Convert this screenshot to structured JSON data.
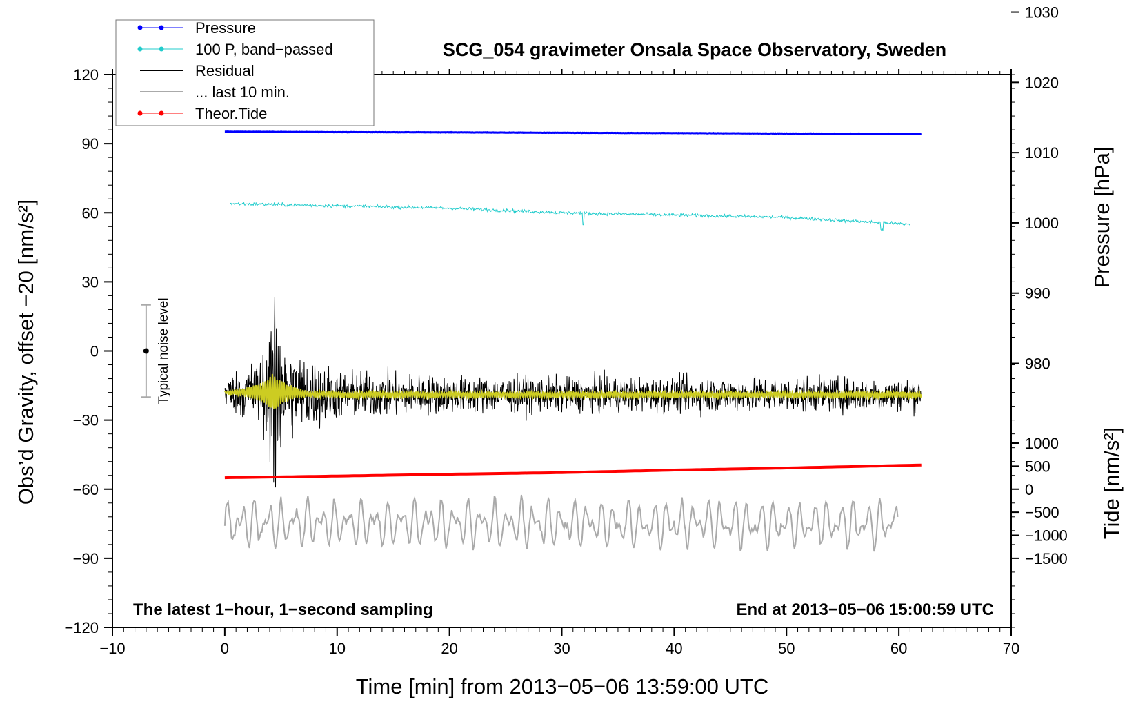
{
  "chart_data": {
    "type": "line",
    "title": "SCG_054 gravimeter Onsala Space Observatory, Sweden",
    "xlabel": "Time [min] from 2013−05−06 13:59:00 UTC",
    "ylabel_main": "Obs’d Gravity, offset −20 [nm/s²]",
    "ylabel_pressure": "Pressure [hPa]",
    "ylabel_tide": "Tide [nm/s²]",
    "note_left": "The latest 1−hour, 1−second sampling",
    "note_right": "End at 2013−05−06 15:00:59 UTC",
    "noise_label": "Typical noise level",
    "xlim": [
      -10,
      70
    ],
    "ylim": [
      -120,
      120
    ],
    "x_ticks": [
      -10,
      0,
      10,
      20,
      30,
      40,
      50,
      60,
      70
    ],
    "x_tick_labels": [
      "−10",
      "0",
      "10",
      "20",
      "30",
      "40",
      "50",
      "60",
      "70"
    ],
    "y_ticks": [
      120,
      90,
      60,
      30,
      0,
      -30,
      -60,
      -90,
      -120
    ],
    "y_tick_labels": [
      "120",
      "90",
      "60",
      "30",
      "0",
      "−30",
      "−60",
      "−90",
      "−120"
    ],
    "pressure_axis": {
      "ticks": [
        1030,
        1020,
        1010,
        1000,
        990,
        980
      ],
      "tick_labels": [
        "1030",
        "1020",
        "1010",
        "1000",
        "990",
        "980"
      ],
      "equivalent_gravity_of_1000_hPa": 55.6,
      "gravity_per_hPa": 3.05
    },
    "tide_axis": {
      "ticks": [
        1000,
        500,
        0,
        -500,
        -1000,
        -1500
      ],
      "tick_labels": [
        "1000",
        "500",
        "0",
        "−500",
        "−1000",
        "−1500"
      ],
      "gravity_of_zero_tide": -60,
      "gravity_per_nm_s2": 0.02
    },
    "noise_level": {
      "x": -7,
      "center": 0,
      "low": -20,
      "high": 20
    },
    "legend": [
      {
        "label": "Pressure",
        "color": "#0000ff",
        "marker": true
      },
      {
        "label": "100 P, band−passed",
        "color": "#22cccc",
        "marker": true
      },
      {
        "label": "Residual",
        "color": "#000000",
        "marker": false
      },
      {
        "label": "... last 10 min.",
        "color": "#aaaaaa",
        "marker": false
      },
      {
        "label": "Theor.Tide",
        "color": "#ff0000",
        "marker": true
      }
    ],
    "series": [
      {
        "name": "Pressure",
        "color": "#0000ff",
        "x": [
          0,
          10,
          20,
          30,
          40,
          50,
          62
        ],
        "y": [
          95.2,
          95.0,
          94.9,
          94.7,
          94.6,
          94.4,
          94.3
        ]
      },
      {
        "name": "100 P, band−passed",
        "color": "#22cccc",
        "x": [
          0,
          10,
          20,
          30,
          40,
          50,
          61
        ],
        "y": [
          64,
          63,
          62,
          60,
          59,
          58,
          55
        ]
      },
      {
        "name": "Residual",
        "color": "#000000",
        "x": [
          0,
          5,
          10,
          20,
          30,
          40,
          50,
          62
        ],
        "y": [
          -18,
          -18,
          -19,
          -19,
          -19,
          -19,
          -19,
          -19
        ],
        "envelope": [
          12,
          40,
          20,
          15,
          14,
          14,
          14,
          13
        ]
      },
      {
        "name": "Residual smoothed",
        "color": "#cccc22",
        "x": [
          0,
          5,
          10,
          20,
          30,
          40,
          50,
          62
        ],
        "y": [
          -18,
          -18,
          -19,
          -19,
          -19,
          -19,
          -19,
          -19
        ]
      },
      {
        "name": "Theor.Tide",
        "color": "#ff0000",
        "x": [
          0,
          10,
          20,
          30,
          40,
          50,
          62
        ],
        "y": [
          -55,
          -54.3,
          -53.5,
          -52.8,
          -51.7,
          -50.8,
          -49.5
        ]
      },
      {
        "name": "... last 10 min.",
        "color": "#aaaaaa",
        "x_start": 0,
        "x_end": 60,
        "center": -75,
        "amplitude": 10
      }
    ]
  }
}
